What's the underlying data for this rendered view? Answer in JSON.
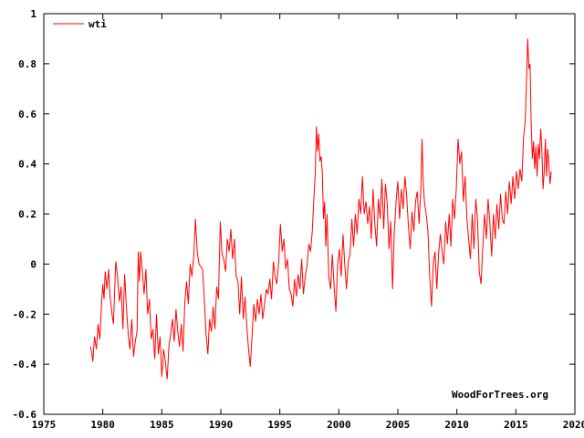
{
  "chart_data": {
    "type": "line",
    "title": "",
    "xlabel": "",
    "ylabel": "",
    "xlim": [
      1975,
      2020
    ],
    "ylim": [
      -0.6,
      1.0
    ],
    "grid": false,
    "legend_position": "top-left",
    "x_ticks": [
      "1975",
      "1980",
      "1985",
      "1990",
      "1995",
      "2000",
      "2005",
      "2010",
      "2015",
      "2020"
    ],
    "y_ticks": [
      "-0.6",
      "-0.4",
      "-0.2",
      "0",
      "0.2",
      "0.4",
      "0.6",
      "0.8",
      "1"
    ],
    "credit": "WoodForTrees.org",
    "series": [
      {
        "name": "wti",
        "color": "#ff0000",
        "points": [
          [
            1978.95,
            -0.33
          ],
          [
            1979.05,
            -0.35
          ],
          [
            1979.15,
            -0.39
          ],
          [
            1979.3,
            -0.29
          ],
          [
            1979.45,
            -0.34
          ],
          [
            1979.6,
            -0.24
          ],
          [
            1979.75,
            -0.3
          ],
          [
            1979.9,
            -0.15
          ],
          [
            1980.0,
            -0.08
          ],
          [
            1980.1,
            -0.14
          ],
          [
            1980.2,
            -0.03
          ],
          [
            1980.35,
            -0.1
          ],
          [
            1980.5,
            -0.02
          ],
          [
            1980.6,
            -0.12
          ],
          [
            1980.75,
            -0.19
          ],
          [
            1980.9,
            -0.24
          ],
          [
            1981.0,
            -0.11
          ],
          [
            1981.1,
            0.01
          ],
          [
            1981.25,
            -0.05
          ],
          [
            1981.4,
            -0.15
          ],
          [
            1981.55,
            -0.09
          ],
          [
            1981.7,
            -0.26
          ],
          [
            1981.85,
            -0.04
          ],
          [
            1982.0,
            -0.17
          ],
          [
            1982.15,
            -0.28
          ],
          [
            1982.3,
            -0.34
          ],
          [
            1982.45,
            -0.22
          ],
          [
            1982.6,
            -0.37
          ],
          [
            1982.75,
            -0.31
          ],
          [
            1982.9,
            -0.27
          ],
          [
            1983.0,
            0.05
          ],
          [
            1983.1,
            -0.07
          ],
          [
            1983.2,
            0.05
          ],
          [
            1983.35,
            -0.03
          ],
          [
            1983.5,
            -0.12
          ],
          [
            1983.65,
            -0.02
          ],
          [
            1983.8,
            -0.2
          ],
          [
            1983.95,
            -0.14
          ],
          [
            1984.1,
            -0.3
          ],
          [
            1984.25,
            -0.26
          ],
          [
            1984.4,
            -0.38
          ],
          [
            1984.55,
            -0.2
          ],
          [
            1984.7,
            -0.36
          ],
          [
            1984.85,
            -0.29
          ],
          [
            1985.0,
            -0.45
          ],
          [
            1985.15,
            -0.34
          ],
          [
            1985.3,
            -0.39
          ],
          [
            1985.45,
            -0.46
          ],
          [
            1985.6,
            -0.33
          ],
          [
            1985.75,
            -0.28
          ],
          [
            1985.9,
            -0.22
          ],
          [
            1986.05,
            -0.31
          ],
          [
            1986.2,
            -0.18
          ],
          [
            1986.35,
            -0.27
          ],
          [
            1986.5,
            -0.33
          ],
          [
            1986.65,
            -0.24
          ],
          [
            1986.8,
            -0.35
          ],
          [
            1986.95,
            -0.15
          ],
          [
            1987.1,
            -0.07
          ],
          [
            1987.25,
            -0.16
          ],
          [
            1987.4,
            0.0
          ],
          [
            1987.55,
            -0.05
          ],
          [
            1987.7,
            0.03
          ],
          [
            1987.85,
            0.18
          ],
          [
            1988.0,
            0.05
          ],
          [
            1988.15,
            0.0
          ],
          [
            1988.3,
            -0.01
          ],
          [
            1988.45,
            -0.02
          ],
          [
            1988.6,
            -0.14
          ],
          [
            1988.75,
            -0.28
          ],
          [
            1988.9,
            -0.36
          ],
          [
            1989.05,
            -0.22
          ],
          [
            1989.2,
            -0.27
          ],
          [
            1989.35,
            -0.17
          ],
          [
            1989.5,
            -0.26
          ],
          [
            1989.65,
            -0.09
          ],
          [
            1989.8,
            -0.14
          ],
          [
            1989.95,
            0.17
          ],
          [
            1990.1,
            0.04
          ],
          [
            1990.25,
            0.02
          ],
          [
            1990.4,
            -0.03
          ],
          [
            1990.55,
            0.1
          ],
          [
            1990.7,
            0.05
          ],
          [
            1990.85,
            0.14
          ],
          [
            1991.0,
            0.02
          ],
          [
            1991.15,
            0.1
          ],
          [
            1991.3,
            -0.05
          ],
          [
            1991.45,
            -0.07
          ],
          [
            1991.6,
            -0.2
          ],
          [
            1991.75,
            -0.05
          ],
          [
            1991.9,
            -0.22
          ],
          [
            1992.05,
            -0.13
          ],
          [
            1992.2,
            -0.25
          ],
          [
            1992.35,
            -0.34
          ],
          [
            1992.5,
            -0.41
          ],
          [
            1992.65,
            -0.28
          ],
          [
            1992.8,
            -0.16
          ],
          [
            1992.95,
            -0.23
          ],
          [
            1993.1,
            -0.14
          ],
          [
            1993.25,
            -0.2
          ],
          [
            1993.4,
            -0.12
          ],
          [
            1993.55,
            -0.22
          ],
          [
            1993.7,
            -0.16
          ],
          [
            1993.85,
            -0.1
          ],
          [
            1994.0,
            -0.12
          ],
          [
            1994.15,
            -0.06
          ],
          [
            1994.3,
            -0.14
          ],
          [
            1994.45,
            0.01
          ],
          [
            1994.6,
            -0.05
          ],
          [
            1994.75,
            -0.08
          ],
          [
            1994.9,
            0.01
          ],
          [
            1995.05,
            0.16
          ],
          [
            1995.2,
            0.05
          ],
          [
            1995.35,
            0.1
          ],
          [
            1995.5,
            -0.02
          ],
          [
            1995.65,
            0.02
          ],
          [
            1995.8,
            -0.1
          ],
          [
            1995.95,
            -0.12
          ],
          [
            1996.1,
            -0.17
          ],
          [
            1996.25,
            -0.06
          ],
          [
            1996.4,
            -0.13
          ],
          [
            1996.55,
            -0.04
          ],
          [
            1996.7,
            -0.1
          ],
          [
            1996.85,
            0.02
          ],
          [
            1997.0,
            -0.12
          ],
          [
            1997.15,
            -0.05
          ],
          [
            1997.3,
            -0.01
          ],
          [
            1997.45,
            0.08
          ],
          [
            1997.6,
            0.05
          ],
          [
            1997.75,
            0.13
          ],
          [
            1997.9,
            0.28
          ],
          [
            1998.0,
            0.36
          ],
          [
            1998.1,
            0.55
          ],
          [
            1998.2,
            0.45
          ],
          [
            1998.3,
            0.52
          ],
          [
            1998.4,
            0.41
          ],
          [
            1998.5,
            0.43
          ],
          [
            1998.6,
            0.37
          ],
          [
            1998.7,
            0.18
          ],
          [
            1998.8,
            0.25
          ],
          [
            1998.9,
            0.07
          ],
          [
            1999.0,
            0.2
          ],
          [
            1999.15,
            -0.05
          ],
          [
            1999.3,
            -0.1
          ],
          [
            1999.45,
            0.04
          ],
          [
            1999.6,
            -0.09
          ],
          [
            1999.75,
            -0.19
          ],
          [
            1999.9,
            0.0
          ],
          [
            2000.05,
            0.06
          ],
          [
            2000.2,
            -0.05
          ],
          [
            2000.35,
            0.12
          ],
          [
            2000.5,
            0.0
          ],
          [
            2000.65,
            -0.1
          ],
          [
            2000.8,
            0.01
          ],
          [
            2000.95,
            0.04
          ],
          [
            2001.1,
            0.18
          ],
          [
            2001.25,
            0.07
          ],
          [
            2001.4,
            0.2
          ],
          [
            2001.55,
            0.12
          ],
          [
            2001.7,
            0.26
          ],
          [
            2001.85,
            0.2
          ],
          [
            2002.0,
            0.35
          ],
          [
            2002.15,
            0.2
          ],
          [
            2002.3,
            0.25
          ],
          [
            2002.45,
            0.16
          ],
          [
            2002.6,
            0.23
          ],
          [
            2002.75,
            0.1
          ],
          [
            2002.9,
            0.3
          ],
          [
            2003.05,
            0.16
          ],
          [
            2003.2,
            0.07
          ],
          [
            2003.35,
            0.26
          ],
          [
            2003.5,
            0.18
          ],
          [
            2003.65,
            0.34
          ],
          [
            2003.8,
            0.14
          ],
          [
            2003.95,
            0.32
          ],
          [
            2004.1,
            0.24
          ],
          [
            2004.25,
            0.06
          ],
          [
            2004.4,
            0.17
          ],
          [
            2004.55,
            -0.1
          ],
          [
            2004.7,
            0.13
          ],
          [
            2004.85,
            0.25
          ],
          [
            2005.0,
            0.33
          ],
          [
            2005.15,
            0.18
          ],
          [
            2005.3,
            0.3
          ],
          [
            2005.45,
            0.22
          ],
          [
            2005.6,
            0.35
          ],
          [
            2005.75,
            0.27
          ],
          [
            2005.9,
            0.15
          ],
          [
            2006.05,
            0.06
          ],
          [
            2006.2,
            0.21
          ],
          [
            2006.35,
            0.13
          ],
          [
            2006.5,
            0.25
          ],
          [
            2006.65,
            0.29
          ],
          [
            2006.8,
            0.16
          ],
          [
            2006.95,
            0.3
          ],
          [
            2007.05,
            0.5
          ],
          [
            2007.15,
            0.33
          ],
          [
            2007.25,
            0.25
          ],
          [
            2007.4,
            0.2
          ],
          [
            2007.55,
            0.13
          ],
          [
            2007.7,
            -0.05
          ],
          [
            2007.85,
            -0.17
          ],
          [
            2008.0,
            0.0
          ],
          [
            2008.15,
            0.05
          ],
          [
            2008.3,
            -0.1
          ],
          [
            2008.45,
            0.04
          ],
          [
            2008.6,
            0.12
          ],
          [
            2008.75,
            0.05
          ],
          [
            2008.9,
            0.0
          ],
          [
            2009.05,
            0.17
          ],
          [
            2009.2,
            0.08
          ],
          [
            2009.35,
            0.2
          ],
          [
            2009.5,
            0.07
          ],
          [
            2009.65,
            0.26
          ],
          [
            2009.8,
            0.18
          ],
          [
            2009.95,
            0.3
          ],
          [
            2010.1,
            0.5
          ],
          [
            2010.25,
            0.4
          ],
          [
            2010.4,
            0.45
          ],
          [
            2010.55,
            0.25
          ],
          [
            2010.7,
            0.35
          ],
          [
            2010.85,
            0.18
          ],
          [
            2011.0,
            0.1
          ],
          [
            2011.15,
            0.02
          ],
          [
            2011.3,
            0.2
          ],
          [
            2011.45,
            0.06
          ],
          [
            2011.6,
            0.26
          ],
          [
            2011.75,
            0.18
          ],
          [
            2011.9,
            -0.03
          ],
          [
            2012.05,
            -0.08
          ],
          [
            2012.2,
            0.07
          ],
          [
            2012.35,
            0.2
          ],
          [
            2012.5,
            0.1
          ],
          [
            2012.65,
            0.26
          ],
          [
            2012.8,
            0.16
          ],
          [
            2012.95,
            0.03
          ],
          [
            2013.1,
            0.2
          ],
          [
            2013.25,
            0.1
          ],
          [
            2013.4,
            0.24
          ],
          [
            2013.55,
            0.14
          ],
          [
            2013.7,
            0.28
          ],
          [
            2013.85,
            0.18
          ],
          [
            2014.0,
            0.16
          ],
          [
            2014.15,
            0.29
          ],
          [
            2014.3,
            0.2
          ],
          [
            2014.45,
            0.33
          ],
          [
            2014.6,
            0.24
          ],
          [
            2014.75,
            0.35
          ],
          [
            2014.9,
            0.26
          ],
          [
            2015.05,
            0.37
          ],
          [
            2015.2,
            0.3
          ],
          [
            2015.35,
            0.38
          ],
          [
            2015.5,
            0.33
          ],
          [
            2015.65,
            0.5
          ],
          [
            2015.8,
            0.58
          ],
          [
            2015.9,
            0.73
          ],
          [
            2016.0,
            0.9
          ],
          [
            2016.1,
            0.78
          ],
          [
            2016.2,
            0.8
          ],
          [
            2016.3,
            0.56
          ],
          [
            2016.4,
            0.42
          ],
          [
            2016.5,
            0.49
          ],
          [
            2016.6,
            0.38
          ],
          [
            2016.7,
            0.47
          ],
          [
            2016.8,
            0.35
          ],
          [
            2016.9,
            0.48
          ],
          [
            2017.0,
            0.42
          ],
          [
            2017.1,
            0.54
          ],
          [
            2017.2,
            0.46
          ],
          [
            2017.3,
            0.3
          ],
          [
            2017.4,
            0.37
          ],
          [
            2017.5,
            0.5
          ],
          [
            2017.6,
            0.35
          ],
          [
            2017.7,
            0.46
          ],
          [
            2017.8,
            0.4
          ],
          [
            2017.9,
            0.32
          ],
          [
            2018.0,
            0.37
          ]
        ]
      }
    ]
  }
}
